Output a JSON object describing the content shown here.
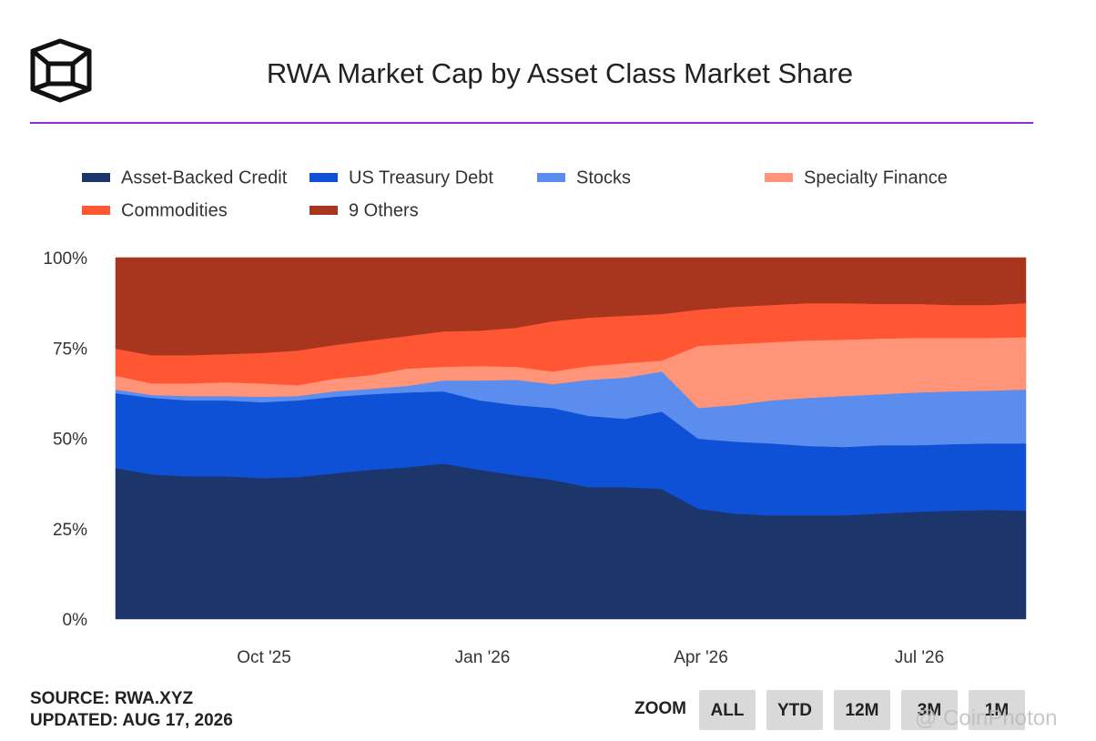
{
  "chart_data": {
    "type": "stacked_area",
    "title": "RWA Market Cap by Asset Class Market Share",
    "categories": [
      null,
      null,
      null,
      null,
      "Oct '25",
      null,
      null,
      null,
      null,
      null,
      "Jan '26",
      null,
      null,
      null,
      null,
      null,
      "Apr '26",
      null,
      null,
      null,
      null,
      null,
      "Jul '26",
      null,
      null,
      null
    ],
    "series": [
      {
        "name": "Asset-Backed Credit",
        "color": "#1c366b",
        "values": [
          41.8,
          40,
          39.5,
          39.5,
          39,
          39.3,
          40.3,
          41.3,
          42,
          43,
          41.3,
          39.8,
          38.5,
          36.5,
          36.5,
          36,
          30.5,
          29.2,
          28.7,
          28.7,
          28.7,
          29.2,
          29.7,
          30,
          30.2,
          30
        ]
      },
      {
        "name": "US Treasury Debt",
        "color": "#0f51d6",
        "values": [
          20.7,
          21.2,
          21,
          21,
          21,
          21.2,
          21.2,
          20.9,
          20.7,
          20,
          19.2,
          19.4,
          19.9,
          19.7,
          18.9,
          21.4,
          19.4,
          19.9,
          19.9,
          19.2,
          18.9,
          18.9,
          18.4,
          18.4,
          18.4,
          18.6
        ]
      },
      {
        "name": "Stocks",
        "color": "#5b8def",
        "values": [
          1,
          0.8,
          1.2,
          1.2,
          1.5,
          1.2,
          1.5,
          1.5,
          1.8,
          3,
          5.5,
          7,
          6.6,
          10,
          11.4,
          11.1,
          8.5,
          10.1,
          11.9,
          13.3,
          14.1,
          14.1,
          14.6,
          14.6,
          14.6,
          14.9
        ]
      },
      {
        "name": "Specialty Finance",
        "color": "#ff9478",
        "values": [
          3.8,
          3.2,
          3.5,
          3.8,
          3.7,
          3,
          3.5,
          3.8,
          4.8,
          3.8,
          4,
          3.6,
          3.5,
          3.8,
          4,
          3,
          17.2,
          16.9,
          16.1,
          15.9,
          15.6,
          15.4,
          15.1,
          14.8,
          14.6,
          14.5
        ]
      },
      {
        "name": "Commodities",
        "color": "#ff5733",
        "values": [
          7.5,
          7.8,
          7.8,
          7.8,
          8.4,
          9.6,
          9.3,
          9.6,
          9,
          9.8,
          9.8,
          10.8,
          13.9,
          13.4,
          13.1,
          12.9,
          10,
          10.3,
          10.3,
          10.3,
          10.1,
          9.6,
          9.4,
          9.1,
          9.1,
          9.4
        ]
      },
      {
        "name": "9 Others",
        "color": "#a8361f",
        "values": [
          25.2,
          27,
          27,
          26.7,
          26.4,
          25.7,
          24.2,
          22.9,
          21.7,
          20.4,
          20.2,
          19.4,
          17.6,
          16.6,
          16.1,
          15.6,
          14.4,
          13.6,
          13.1,
          12.6,
          12.6,
          12.8,
          12.8,
          13.1,
          13.1,
          12.6
        ]
      }
    ],
    "ylim": [
      0,
      100
    ],
    "yticks": [
      {
        "value": 0,
        "label": "0%"
      },
      {
        "value": 25,
        "label": "25%"
      },
      {
        "value": 50,
        "label": "50%"
      },
      {
        "value": 75,
        "label": "75%"
      },
      {
        "value": 100,
        "label": "100%"
      }
    ],
    "legend": "top"
  },
  "footer": {
    "source": "SOURCE: RWA.XYZ",
    "updated": "UPDATED: AUG 17, 2026"
  },
  "zoom": {
    "label": "ZOOM",
    "buttons": [
      "ALL",
      "YTD",
      "12M",
      "3M",
      "1M"
    ]
  },
  "watermark": "@ CoinPhoton"
}
